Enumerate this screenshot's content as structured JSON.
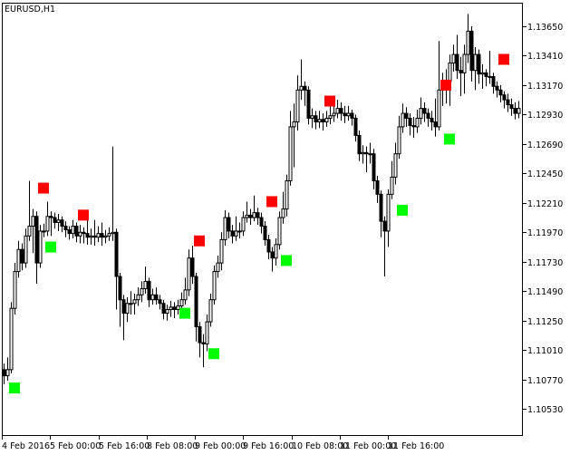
{
  "window": {
    "title": "EURUSD,H1"
  },
  "chart_data": {
    "type": "candlestick",
    "symbol": "EURUSD",
    "timeframe": "H1",
    "title": "EURUSD,H1",
    "y_ticks": [
      "1.13650",
      "1.13410",
      "1.13170",
      "1.12930",
      "1.12690",
      "1.12450",
      "1.12210",
      "1.11970",
      "1.11730",
      "1.11490",
      "1.11250",
      "1.11010",
      "1.10770",
      "1.10530"
    ],
    "x_ticks": [
      "4 Feb 2016",
      "5 Feb 00:00",
      "5 Feb 16:00",
      "8 Feb 08:00",
      "9 Feb 00:00",
      "9 Feb 16:00",
      "10 Feb 08:00",
      "11 Feb 00:00",
      "11 Feb 16:00"
    ],
    "ylim": [
      1.1034,
      1.1386
    ],
    "grid": false,
    "colors": {
      "background": "#ffffff",
      "up_body": "#ffffff",
      "down_body": "#000000",
      "outline": "#000000",
      "sell_marker": "#ff0000",
      "buy_marker": "#00ff00"
    },
    "open": [
      1.1085,
      1.108,
      1.1085,
      1.1135,
      1.1165,
      1.1183,
      1.1172,
      1.1194,
      1.1202,
      1.121,
      1.1172,
      1.1198,
      1.1198,
      1.121,
      1.1209,
      1.1205,
      1.1207,
      1.1202,
      1.1199,
      1.1196,
      1.1202,
      1.1194,
      1.1197,
      1.1196,
      1.1193,
      1.1194,
      1.1193,
      1.1196,
      1.1193,
      1.1194,
      1.1196,
      1.1197,
      1.1161,
      1.1142,
      1.1131,
      1.1139,
      1.1139,
      1.1142,
      1.1146,
      1.1151,
      1.1157,
      1.1142,
      1.1146,
      1.1142,
      1.1139,
      1.1131,
      1.1134,
      1.1136,
      1.1134,
      1.1137,
      1.1142,
      1.115,
      1.1176,
      1.1161,
      1.112,
      1.1107,
      1.1106,
      1.1124,
      1.1142,
      1.1165,
      1.1172,
      1.1191,
      1.1209,
      1.1198,
      1.1194,
      1.1198,
      1.1198,
      1.1209,
      1.1211,
      1.1209,
      1.1213,
      1.1209,
      1.1202,
      1.1191,
      1.1181,
      1.1176,
      1.1187,
      1.1209,
      1.1216,
      1.1239,
      1.1283,
      1.1287,
      1.1313,
      1.1316,
      1.1313,
      1.129,
      1.1292,
      1.1287,
      1.1289,
      1.1287,
      1.129,
      1.1292,
      1.1294,
      1.1298,
      1.1294,
      1.1292,
      1.1294,
      1.129,
      1.1276,
      1.1261,
      1.1262,
      1.1261,
      1.1261,
      1.1239,
      1.1228,
      1.1206,
      1.1198,
      1.1228,
      1.1242,
      1.1261,
      1.1283,
      1.1294,
      1.129,
      1.1284,
      1.1283,
      1.129,
      1.1298,
      1.1294,
      1.129,
      1.1287,
      1.1283,
      1.1313,
      1.132,
      1.132,
      1.1335,
      1.1342,
      1.1329,
      1.1327,
      1.1342,
      1.1361,
      1.1329,
      1.1342,
      1.1326,
      1.1327,
      1.1324,
      1.1324,
      1.1316,
      1.1313,
      1.1309,
      1.1305,
      1.1301,
      1.1298,
      1.1294
    ],
    "high": [
      1.109,
      1.1095,
      1.114,
      1.1172,
      1.119,
      1.1188,
      1.12,
      1.1239,
      1.1216,
      1.1214,
      1.1203,
      1.1204,
      1.1222,
      1.1214,
      1.1213,
      1.1212,
      1.121,
      1.1206,
      1.1202,
      1.1207,
      1.1205,
      1.1203,
      1.1201,
      1.1214,
      1.12,
      1.1207,
      1.1202,
      1.1205,
      1.1199,
      1.1201,
      1.1267,
      1.12,
      1.1164,
      1.1146,
      1.1144,
      1.1149,
      1.1147,
      1.1152,
      1.1157,
      1.1169,
      1.116,
      1.1151,
      1.1152,
      1.1146,
      1.1142,
      1.1138,
      1.1141,
      1.114,
      1.1142,
      1.1148,
      1.116,
      1.1183,
      1.1186,
      1.1164,
      1.1124,
      1.1114,
      1.113,
      1.1147,
      1.117,
      1.1178,
      1.1197,
      1.1215,
      1.1213,
      1.1203,
      1.121,
      1.1205,
      1.1214,
      1.1222,
      1.1216,
      1.1227,
      1.1217,
      1.1213,
      1.1206,
      1.1195,
      1.1185,
      1.1192,
      1.1214,
      1.123,
      1.1244,
      1.1296,
      1.1302,
      1.1325,
      1.1338,
      1.132,
      1.1316,
      1.1298,
      1.1296,
      1.1296,
      1.1294,
      1.1296,
      1.1301,
      1.1302,
      1.1305,
      1.1303,
      1.13,
      1.13,
      1.1297,
      1.1293,
      1.128,
      1.1268,
      1.1267,
      1.127,
      1.1265,
      1.1243,
      1.1231,
      1.121,
      1.1232,
      1.1255,
      1.127,
      1.1292,
      1.1302,
      1.1299,
      1.1294,
      1.1291,
      1.1297,
      1.1307,
      1.1303,
      1.1298,
      1.1296,
      1.1306,
      1.1353,
      1.1327,
      1.133,
      1.1342,
      1.135,
      1.1358,
      1.134,
      1.135,
      1.1375,
      1.1365,
      1.1348,
      1.1346,
      1.1334,
      1.133,
      1.1345,
      1.1327,
      1.132,
      1.1317,
      1.1312,
      1.131,
      1.1306,
      1.1303,
      1.1304
    ],
    "low": [
      1.1073,
      1.1076,
      1.1082,
      1.113,
      1.116,
      1.1166,
      1.1168,
      1.119,
      1.118,
      1.1155,
      1.1168,
      1.1193,
      1.1194,
      1.1194,
      1.12,
      1.1198,
      1.1197,
      1.1193,
      1.1191,
      1.1192,
      1.1189,
      1.1188,
      1.1188,
      1.1187,
      1.1187,
      1.1186,
      1.1189,
      1.1186,
      1.1188,
      1.119,
      1.119,
      1.1134,
      1.112,
      1.1109,
      1.1124,
      1.113,
      1.113,
      1.1137,
      1.114,
      1.1147,
      1.1136,
      1.1138,
      1.1138,
      1.1134,
      1.1126,
      1.1125,
      1.1128,
      1.1127,
      1.113,
      1.1132,
      1.1138,
      1.1145,
      1.1155,
      1.1108,
      1.1095,
      1.1087,
      1.11,
      1.112,
      1.1138,
      1.116,
      1.1166,
      1.1186,
      1.1192,
      1.1188,
      1.119,
      1.1192,
      1.1194,
      1.1205,
      1.1203,
      1.1206,
      1.1203,
      1.1196,
      1.1186,
      1.1175,
      1.1165,
      1.117,
      1.1183,
      1.1204,
      1.121,
      1.1235,
      1.125,
      1.128,
      1.1305,
      1.13,
      1.1285,
      1.1282,
      1.1281,
      1.1282,
      1.128,
      1.1283,
      1.1285,
      1.1287,
      1.129,
      1.1288,
      1.1286,
      1.1288,
      1.1284,
      1.1271,
      1.1255,
      1.1253,
      1.1246,
      1.1253,
      1.1232,
      1.1221,
      1.1193,
      1.1161,
      1.1185,
      1.1224,
      1.1236,
      1.1257,
      1.1278,
      1.1283,
      1.1276,
      1.1274,
      1.1278,
      1.1285,
      1.1287,
      1.1283,
      1.128,
      1.1275,
      1.128,
      1.13,
      1.1302,
      1.13,
      1.1328,
      1.1322,
      1.1308,
      1.131,
      1.1335,
      1.132,
      1.1313,
      1.1318,
      1.1314,
      1.1316,
      1.1318,
      1.131,
      1.1307,
      1.1303,
      1.1298,
      1.1295,
      1.1292,
      1.1289,
      1.129
    ],
    "close": [
      1.108,
      1.1085,
      1.1135,
      1.1165,
      1.1183,
      1.1172,
      1.1194,
      1.1202,
      1.121,
      1.1172,
      1.1198,
      1.1198,
      1.121,
      1.1209,
      1.1205,
      1.1207,
      1.1202,
      1.1199,
      1.1196,
      1.1202,
      1.1194,
      1.1197,
      1.1196,
      1.1193,
      1.1194,
      1.1193,
      1.1196,
      1.1193,
      1.1194,
      1.1196,
      1.1197,
      1.1161,
      1.1142,
      1.1131,
      1.1139,
      1.1139,
      1.1142,
      1.1146,
      1.1151,
      1.1157,
      1.1142,
      1.1146,
      1.1142,
      1.1139,
      1.1131,
      1.1134,
      1.1136,
      1.1134,
      1.1137,
      1.1142,
      1.115,
      1.1176,
      1.1161,
      1.112,
      1.1107,
      1.1106,
      1.1124,
      1.1142,
      1.1165,
      1.1172,
      1.1191,
      1.1209,
      1.1198,
      1.1194,
      1.1198,
      1.1198,
      1.1209,
      1.1211,
      1.1209,
      1.1213,
      1.1209,
      1.1202,
      1.1191,
      1.1181,
      1.1176,
      1.1187,
      1.1209,
      1.1216,
      1.1239,
      1.1283,
      1.1287,
      1.1313,
      1.1316,
      1.1313,
      1.129,
      1.1292,
      1.1287,
      1.1289,
      1.1287,
      1.129,
      1.1292,
      1.1294,
      1.1298,
      1.1294,
      1.1292,
      1.1294,
      1.129,
      1.1276,
      1.1261,
      1.1262,
      1.1261,
      1.1261,
      1.1239,
      1.1228,
      1.1206,
      1.1198,
      1.1228,
      1.1242,
      1.1261,
      1.1283,
      1.1294,
      1.129,
      1.1284,
      1.1283,
      1.129,
      1.1298,
      1.1294,
      1.129,
      1.1287,
      1.1283,
      1.1313,
      1.132,
      1.132,
      1.1335,
      1.1342,
      1.1329,
      1.1327,
      1.1342,
      1.1361,
      1.1329,
      1.1342,
      1.1326,
      1.1327,
      1.1324,
      1.1324,
      1.1316,
      1.1313,
      1.1309,
      1.1305,
      1.1301,
      1.1298,
      1.1294,
      1.1298
    ],
    "signals": [
      {
        "type": "buy",
        "bar": 1,
        "price": 1.107
      },
      {
        "type": "buy",
        "bar": 11,
        "price": 1.1185
      },
      {
        "type": "buy",
        "bar": 48,
        "price": 1.1131
      },
      {
        "type": "buy",
        "bar": 56,
        "price": 1.1098
      },
      {
        "type": "buy",
        "bar": 76,
        "price": 1.1174
      },
      {
        "type": "buy",
        "bar": 108,
        "price": 1.1215
      },
      {
        "type": "buy",
        "bar": 121,
        "price": 1.1273
      },
      {
        "type": "sell",
        "bar": 9,
        "price": 1.1233
      },
      {
        "type": "sell",
        "bar": 20,
        "price": 1.1211
      },
      {
        "type": "sell",
        "bar": 52,
        "price": 1.119
      },
      {
        "type": "sell",
        "bar": 72,
        "price": 1.1222
      },
      {
        "type": "sell",
        "bar": 88,
        "price": 1.1304
      },
      {
        "type": "sell",
        "bar": 120,
        "price": 1.1317
      },
      {
        "type": "sell",
        "bar": 136,
        "price": 1.1338
      }
    ]
  }
}
